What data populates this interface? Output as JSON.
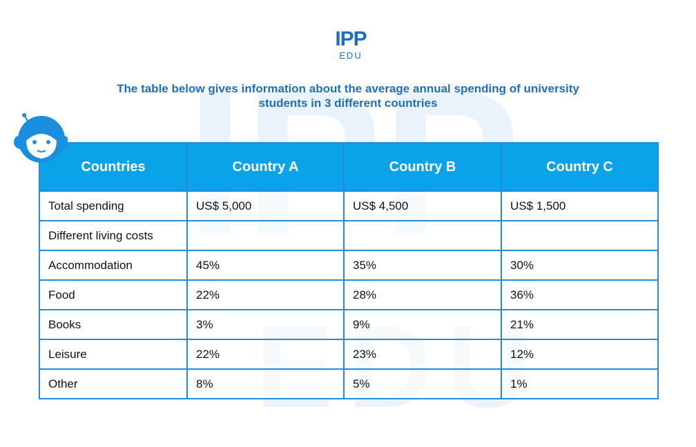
{
  "logo": {
    "main": "IPP",
    "sub": "EDU"
  },
  "title": {
    "line1": "The table below gives information about the average annual spending of university",
    "line2": "students in 3 different countries"
  },
  "table": {
    "headers": [
      "Countries",
      "Country A",
      "Country B",
      "Country C"
    ],
    "rows": [
      [
        "Total spending",
        "US$ 5,000",
        "US$ 4,500",
        "US$ 1,500"
      ],
      [
        "Different living costs",
        "",
        "",
        ""
      ],
      [
        "Accommodation",
        "45%",
        "35%",
        "30%"
      ],
      [
        "Food",
        "22%",
        "28%",
        "36%"
      ],
      [
        "Books",
        "3%",
        "9%",
        "21%"
      ],
      [
        "Leisure",
        "22%",
        "23%",
        "12%"
      ],
      [
        "Other",
        "8%",
        "5%",
        "1%"
      ]
    ]
  },
  "colors": {
    "brand_blue": "#1a6fc0",
    "header_bg": "#0aa3ea",
    "border": "#1e8de0"
  }
}
